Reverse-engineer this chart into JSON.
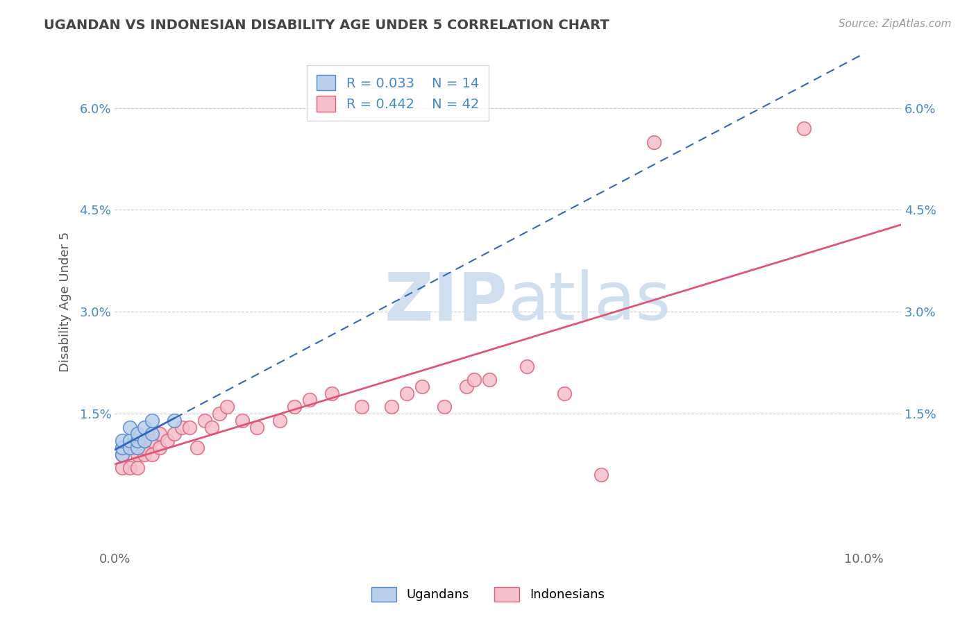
{
  "title": "UGANDAN VS INDONESIAN DISABILITY AGE UNDER 5 CORRELATION CHART",
  "source": "Source: ZipAtlas.com",
  "ylabel": "Disability Age Under 5",
  "xlabel": "",
  "xlim": [
    0.0,
    0.105
  ],
  "ylim": [
    -0.005,
    0.068
  ],
  "yticks": [
    0.015,
    0.03,
    0.045,
    0.06
  ],
  "ytick_labels": [
    "1.5%",
    "3.0%",
    "4.5%",
    "6.0%"
  ],
  "xticks": [
    0.0,
    0.1
  ],
  "xtick_labels": [
    "0.0%",
    "10.0%"
  ],
  "legend_r1": "R = 0.033",
  "legend_n1": "N = 14",
  "legend_r2": "R = 0.442",
  "legend_n2": "N = 42",
  "ugandan_fill_color": "#b8d0ea",
  "ugandan_edge_color": "#5588cc",
  "indonesian_fill_color": "#f5c0cb",
  "indonesian_edge_color": "#e0607a",
  "ugandan_line_color": "#3366bb",
  "indonesian_line_color": "#e05575",
  "watermark_color": "#d0dff0",
  "background_color": "#ffffff",
  "grid_color": "#cccccc",
  "tick_color": "#4488cc",
  "title_color": "#444444",
  "ugandans_x": [
    0.001,
    0.001,
    0.001,
    0.002,
    0.002,
    0.002,
    0.003,
    0.003,
    0.003,
    0.004,
    0.004,
    0.005,
    0.005,
    0.008
  ],
  "ugandans_y": [
    0.009,
    0.01,
    0.011,
    0.01,
    0.011,
    0.013,
    0.01,
    0.011,
    0.012,
    0.011,
    0.013,
    0.012,
    0.014,
    0.014
  ],
  "indonesians_x": [
    0.001,
    0.001,
    0.002,
    0.002,
    0.003,
    0.003,
    0.003,
    0.004,
    0.004,
    0.004,
    0.005,
    0.005,
    0.006,
    0.006,
    0.007,
    0.008,
    0.009,
    0.01,
    0.011,
    0.012,
    0.013,
    0.014,
    0.015,
    0.017,
    0.019,
    0.022,
    0.024,
    0.026,
    0.029,
    0.033,
    0.037,
    0.039,
    0.041,
    0.044,
    0.047,
    0.048,
    0.05,
    0.055,
    0.06,
    0.065,
    0.072,
    0.092
  ],
  "indonesians_y": [
    0.007,
    0.009,
    0.007,
    0.01,
    0.007,
    0.009,
    0.01,
    0.009,
    0.01,
    0.011,
    0.009,
    0.011,
    0.01,
    0.012,
    0.011,
    0.012,
    0.013,
    0.013,
    0.01,
    0.014,
    0.013,
    0.015,
    0.016,
    0.014,
    0.013,
    0.014,
    0.016,
    0.017,
    0.018,
    0.016,
    0.016,
    0.018,
    0.019,
    0.016,
    0.019,
    0.02,
    0.02,
    0.022,
    0.018,
    0.006,
    0.055,
    0.057
  ]
}
